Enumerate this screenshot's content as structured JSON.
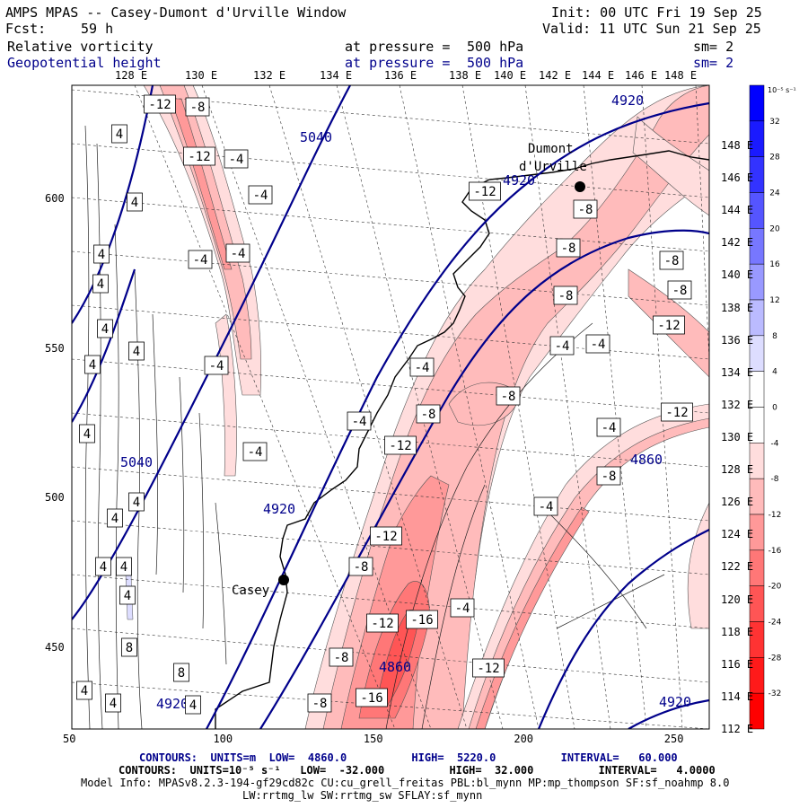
{
  "header": {
    "title": "AMPS MPAS -- Casey-Dumont d'Urville Window",
    "init": "Init: 00 UTC Fri 19 Sep 25",
    "fcst_label": "Fcst:",
    "fcst_value": "59 h",
    "valid": "Valid: 11 UTC Sun 21 Sep 25",
    "field1": {
      "name": "Relative vorticity",
      "pressure_text": "at pressure =",
      "pressure": "500 hPa",
      "sm": "sm= 2"
    },
    "field2": {
      "name": "Geopotential height",
      "pressure_text": "at pressure =",
      "pressure": "500 hPa",
      "sm": "sm= 2"
    }
  },
  "axes": {
    "top_lon": [
      "128 E",
      "130 E",
      "132 E",
      "134 E",
      "136 E",
      "138 E",
      "140 E",
      "142 E",
      "144 E",
      "146 E",
      "148 E"
    ],
    "right_lon": [
      "148 E",
      "146 E",
      "144 E",
      "142 E",
      "140 E",
      "138 E",
      "136 E",
      "134 E",
      "132 E",
      "130 E",
      "128 E",
      "126 E",
      "124 E",
      "122 E",
      "120 E",
      "118 E",
      "116 E",
      "114 E",
      "112 E"
    ],
    "x_ticks": [
      50,
      100,
      150,
      200,
      250
    ],
    "y_ticks": [
      600,
      550,
      500,
      450
    ]
  },
  "places": [
    {
      "name": "Dumont d'Urville",
      "line1": "Dumont",
      "line2": "d'Urville"
    },
    {
      "name": "Casey",
      "line1": "Casey"
    }
  ],
  "height_labels": [
    "5040",
    "4920",
    "5040",
    "4920",
    "4920",
    "4860",
    "4920",
    "4920",
    "4860"
  ],
  "vort_labels": [
    "-12",
    "-8",
    "-12",
    "-4",
    "-4",
    "-4",
    "-12",
    "-8",
    "-4",
    "-4",
    "-4",
    "-4",
    "-4",
    "-12",
    "-8",
    "-16",
    "-12",
    "-16",
    "-8",
    "-12",
    "-8",
    "-12",
    "-4",
    "-8",
    "-4",
    "-8",
    "-8",
    "-8",
    "-4",
    "-12",
    "-8",
    "-4",
    "-8",
    "-12",
    "-4",
    "-8",
    "4",
    "4",
    "4",
    "4",
    "4",
    "4",
    "4",
    "4",
    "4",
    "4",
    "4",
    "4",
    "4",
    "8",
    "8",
    "4",
    "4",
    "4"
  ],
  "colorbar": {
    "unit_label": "10⁻⁵ s⁻¹",
    "levels": [
      "32",
      "28",
      "24",
      "20",
      "16",
      "12",
      "8",
      "4",
      "0",
      "-4",
      "-8",
      "-12",
      "-16",
      "-20",
      "-24",
      "-28",
      "-32"
    ],
    "colors": [
      "#0000ff",
      "#1a1aff",
      "#3333ff",
      "#5555ff",
      "#7777ff",
      "#9999ff",
      "#bbbbff",
      "#ddddff",
      "#ffffff",
      "#ffffff",
      "#ffdddd",
      "#ffbbbb",
      "#ff9999",
      "#ff7777",
      "#ff5555",
      "#ff3333",
      "#ff1a1a",
      "#ff0000"
    ]
  },
  "footer": {
    "line1": "CONTOURS:  UNITS=m  LOW=  4860.0          HIGH=  5220.0          INTERVAL=   60.000",
    "line2": "CONTOURS:  UNITS=10⁻⁵ s⁻¹   LOW=  -32.000          HIGH=  32.000          INTERVAL=   4.0000",
    "line3": "Model Info: MPASv8.2.3-194-gf29cd82c CU:cu_grell_freitas PBL:bl_mynn MP:mp_thompson SF:sf_noahmp 8.0",
    "line4": "LW:rrtmg_lw SW:rrtmg_sw SFLAY:sf_mynn"
  },
  "colors": {
    "height_contour": "#00008b",
    "vort_positive": "#0000ff",
    "vort_negative": "#ff0000"
  }
}
